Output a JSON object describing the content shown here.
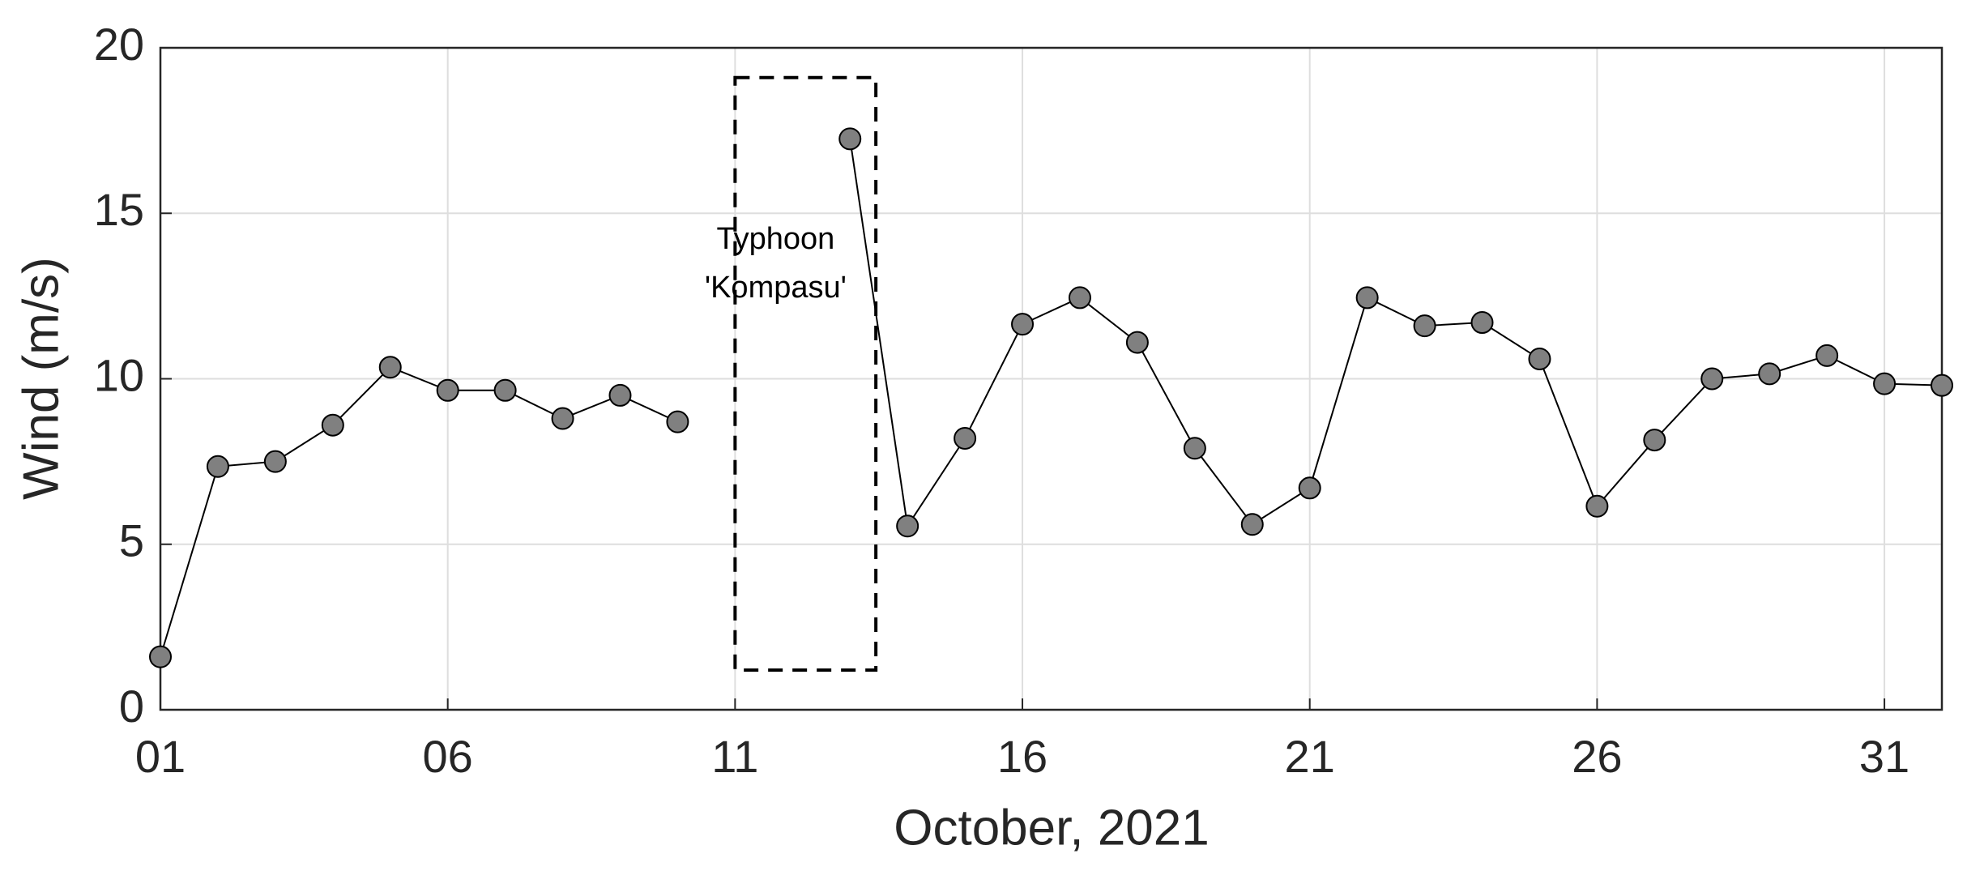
{
  "chart_data": {
    "type": "line",
    "xlabel": "October, 2021",
    "ylabel": "Wind (m/s)",
    "x": [
      1,
      2,
      3,
      4,
      5,
      6,
      7,
      8,
      9,
      10,
      11,
      12,
      13,
      14,
      15,
      16,
      17,
      18,
      19,
      20,
      21,
      22,
      23,
      24,
      25,
      26,
      27,
      28,
      29,
      30,
      31,
      32
    ],
    "series": [
      {
        "color": "#808080",
        "values": [
          1.6,
          7.35,
          7.5,
          8.6,
          10.35,
          9.65,
          9.65,
          8.8,
          9.5,
          8.7,
          null,
          null,
          17.25,
          5.55,
          8.2,
          11.65,
          12.45,
          11.1,
          7.9,
          5.6,
          6.7,
          12.45,
          11.6,
          11.7,
          10.6,
          6.15,
          8.15,
          10.0,
          10.15,
          10.7,
          9.85,
          9.8
        ]
      }
    ],
    "xlim": [
      1,
      32
    ],
    "ylim": [
      0,
      20
    ],
    "xticks": [
      {
        "value": 1,
        "label": "01"
      },
      {
        "value": 6,
        "label": "06"
      },
      11,
      16,
      21,
      26,
      31
    ],
    "yticks": [
      0,
      5,
      10,
      15,
      20
    ],
    "grid": true,
    "highlight": {
      "xlim": [
        11,
        13.45
      ],
      "ylim": [
        1.2,
        19.1
      ],
      "text": [
        "Typhoon",
        "'Kompasu'"
      ]
    }
  }
}
